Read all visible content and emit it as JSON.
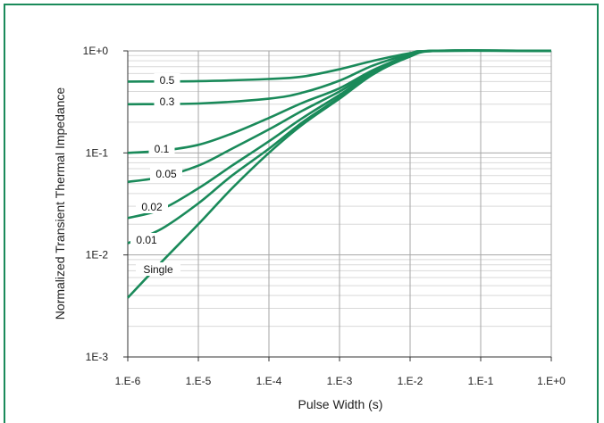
{
  "chart_data": {
    "type": "line",
    "title": "",
    "xlabel": "Pulse Width (s)",
    "ylabel": "Normalized Transient Thermal Impedance",
    "x_scale": "log",
    "y_scale": "log",
    "xlim": [
      1e-06,
      1
    ],
    "ylim": [
      0.001,
      1
    ],
    "grid": true,
    "x_tick_labels": [
      "1.E-6",
      "1.E-5",
      "1.E-4",
      "1.E-3",
      "1.E-2",
      "1.E-1",
      "1.E+0"
    ],
    "y_tick_labels": [
      "1E+0",
      "1E-1",
      "1E-2",
      "1E-3"
    ],
    "line_color": "#1a8a5a",
    "frame_color": "#1a8a5a",
    "series": [
      {
        "name": "0.5",
        "x": [
          1e-06,
          1e-05,
          0.0001,
          0.0003,
          0.001,
          0.003,
          0.01,
          0.02,
          1
        ],
        "y": [
          0.5,
          0.505,
          0.53,
          0.56,
          0.66,
          0.8,
          0.95,
          1.0,
          1.0
        ]
      },
      {
        "name": "0.3",
        "x": [
          1e-06,
          1e-05,
          0.0001,
          0.0003,
          0.001,
          0.003,
          0.01,
          0.02,
          1
        ],
        "y": [
          0.3,
          0.305,
          0.34,
          0.39,
          0.51,
          0.72,
          0.93,
          1.0,
          1.0
        ]
      },
      {
        "name": "0.1",
        "x": [
          1e-06,
          3e-06,
          1e-05,
          3e-05,
          0.0001,
          0.0003,
          0.001,
          0.003,
          0.01,
          0.02,
          1
        ],
        "y": [
          0.1,
          0.105,
          0.12,
          0.155,
          0.22,
          0.31,
          0.43,
          0.65,
          0.91,
          1.0,
          1.0
        ]
      },
      {
        "name": "0.05",
        "x": [
          1e-06,
          3e-06,
          1e-05,
          3e-05,
          0.0001,
          0.0003,
          0.001,
          0.003,
          0.01,
          0.02,
          1
        ],
        "y": [
          0.052,
          0.058,
          0.075,
          0.11,
          0.17,
          0.26,
          0.4,
          0.63,
          0.9,
          1.0,
          1.0
        ]
      },
      {
        "name": "0.02",
        "x": [
          1e-06,
          3e-06,
          1e-05,
          3e-05,
          0.0001,
          0.0003,
          0.001,
          0.003,
          0.01,
          0.02,
          1
        ],
        "y": [
          0.023,
          0.028,
          0.045,
          0.075,
          0.13,
          0.22,
          0.37,
          0.61,
          0.89,
          1.0,
          1.0
        ]
      },
      {
        "name": "0.01",
        "x": [
          1e-06,
          3e-06,
          1e-05,
          3e-05,
          0.0001,
          0.0003,
          0.001,
          0.003,
          0.01,
          0.02,
          1
        ],
        "y": [
          0.013,
          0.018,
          0.032,
          0.06,
          0.11,
          0.2,
          0.35,
          0.6,
          0.88,
          1.0,
          1.0
        ]
      },
      {
        "name": "Single",
        "x": [
          1e-06,
          3e-06,
          1e-05,
          3e-05,
          0.0001,
          0.0003,
          0.001,
          0.003,
          0.01,
          0.025,
          1
        ],
        "y": [
          0.0038,
          0.0085,
          0.02,
          0.045,
          0.1,
          0.19,
          0.34,
          0.59,
          0.88,
          1.0,
          1.0
        ]
      }
    ]
  }
}
